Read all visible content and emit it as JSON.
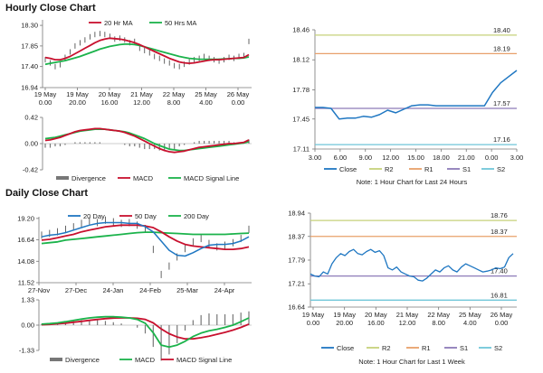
{
  "sections": {
    "hourly_title": "Hourly Close Chart",
    "daily_title": "Daily Close Chart"
  },
  "colors": {
    "green": "#1bb34b",
    "red": "#c8102e",
    "blue": "#1f77c2",
    "price": "#3d3d3d",
    "r2": "#c6d27a",
    "r1": "#e8a06a",
    "s1": "#8d7bb8",
    "s2": "#6fc6d8",
    "divergence": "#777777"
  },
  "chart_data": [
    {
      "id": "hourly_price",
      "type": "line",
      "legend": [
        "20 Hr MA",
        "50 Hrs MA"
      ],
      "y_ticks": [
        "18.30",
        "17.85",
        "17.40",
        "16.94"
      ],
      "y_tick_values": [
        18.3,
        17.85,
        17.4,
        16.94
      ],
      "ylim": [
        16.94,
        18.42
      ],
      "x_ticks": [
        {
          "l1": "19 May",
          "l2": "0.00"
        },
        {
          "l1": "19 May",
          "l2": "20.00"
        },
        {
          "l1": "20 May",
          "l2": "16.00"
        },
        {
          "l1": "21 May",
          "l2": "12.00"
        },
        {
          "l1": "22 May",
          "l2": "8.00"
        },
        {
          "l1": "25 May",
          "l2": "4.00"
        },
        {
          "l1": "26 May",
          "l2": "0.00"
        }
      ],
      "price": [
        17.55,
        17.48,
        17.4,
        17.44,
        17.6,
        17.72,
        17.85,
        17.92,
        17.98,
        18.05,
        18.1,
        18.12,
        18.1,
        18.06,
        18.0,
        18.02,
        17.98,
        17.92,
        17.95,
        17.8,
        17.75,
        17.7,
        17.62,
        17.58,
        17.52,
        17.48,
        17.42,
        17.4,
        17.45,
        17.5,
        17.55,
        17.58,
        17.62,
        17.58,
        17.55,
        17.52,
        17.55,
        17.6,
        17.58,
        17.62,
        17.64,
        17.95
      ],
      "ma20": [
        17.6,
        17.58,
        17.55,
        17.55,
        17.58,
        17.62,
        17.68,
        17.74,
        17.8,
        17.86,
        17.92,
        17.97,
        18.0,
        18.02,
        18.01,
        18.0,
        17.98,
        17.95,
        17.92,
        17.88,
        17.83,
        17.78,
        17.73,
        17.68,
        17.63,
        17.58,
        17.54,
        17.5,
        17.48,
        17.47,
        17.48,
        17.5,
        17.52,
        17.54,
        17.55,
        17.55,
        17.56,
        17.57,
        17.58,
        17.59,
        17.6,
        17.66
      ],
      "ma50": [
        17.45,
        17.47,
        17.49,
        17.51,
        17.53,
        17.56,
        17.59,
        17.62,
        17.66,
        17.7,
        17.74,
        17.78,
        17.81,
        17.84,
        17.86,
        17.88,
        17.89,
        17.89,
        17.88,
        17.86,
        17.83,
        17.8,
        17.77,
        17.74,
        17.71,
        17.68,
        17.65,
        17.62,
        17.6,
        17.58,
        17.57,
        17.56,
        17.56,
        17.56,
        17.56,
        17.56,
        17.57,
        17.57,
        17.58,
        17.58,
        17.59,
        17.61
      ]
    },
    {
      "id": "hourly_macd",
      "type": "line",
      "legend": [
        "Divergence",
        "MACD",
        "MACD Signal Line"
      ],
      "y_ticks": [
        "0.42",
        "0.00",
        "-0.42"
      ],
      "y_tick_values": [
        0.42,
        0.0,
        -0.42
      ],
      "ylim": [
        -0.42,
        0.42
      ],
      "macd": [
        0.05,
        0.06,
        0.08,
        0.1,
        0.13,
        0.16,
        0.19,
        0.21,
        0.22,
        0.23,
        0.24,
        0.24,
        0.23,
        0.22,
        0.21,
        0.2,
        0.18,
        0.15,
        0.12,
        0.08,
        0.04,
        0.0,
        -0.04,
        -0.08,
        -0.11,
        -0.13,
        -0.14,
        -0.13,
        -0.12,
        -0.1,
        -0.08,
        -0.06,
        -0.05,
        -0.04,
        -0.03,
        -0.02,
        -0.01,
        0.0,
        0.0,
        0.01,
        0.02,
        0.06
      ],
      "signal": [
        0.08,
        0.09,
        0.1,
        0.12,
        0.14,
        0.16,
        0.18,
        0.2,
        0.21,
        0.22,
        0.23,
        0.23,
        0.23,
        0.22,
        0.21,
        0.2,
        0.19,
        0.17,
        0.14,
        0.11,
        0.08,
        0.04,
        0.0,
        -0.03,
        -0.06,
        -0.09,
        -0.1,
        -0.11,
        -0.11,
        -0.1,
        -0.09,
        -0.08,
        -0.07,
        -0.06,
        -0.05,
        -0.04,
        -0.03,
        -0.02,
        -0.01,
        0.0,
        0.01,
        0.03
      ]
    },
    {
      "id": "hourly_24h",
      "type": "line",
      "legend": [
        "Close",
        "R2",
        "R1",
        "S1",
        "S2"
      ],
      "y_ticks": [
        "18.46",
        "18.12",
        "17.78",
        "17.45",
        "17.11"
      ],
      "y_tick_values": [
        18.46,
        18.12,
        17.78,
        17.45,
        17.11
      ],
      "ylim": [
        17.11,
        18.46
      ],
      "x_ticks": [
        "3.00",
        "6.00",
        "9.00",
        "12.00",
        "15.00",
        "18.00",
        "21.00",
        "0.00",
        "3.00"
      ],
      "levels": {
        "R2": 18.4,
        "R1": 18.19,
        "S1": 17.57,
        "S2": 17.16
      },
      "level_labels": {
        "R2": "18.40",
        "R1": "18.19",
        "S1": "17.57",
        "S2": "17.16"
      },
      "x": [
        0,
        1,
        2,
        3,
        4,
        5,
        6,
        7,
        8,
        9,
        10,
        11,
        12,
        13,
        14,
        15,
        16,
        17,
        18,
        19,
        20,
        21,
        22,
        23,
        24,
        25
      ],
      "close": [
        17.58,
        17.58,
        17.57,
        17.45,
        17.46,
        17.46,
        17.48,
        17.47,
        17.5,
        17.55,
        17.52,
        17.56,
        17.6,
        17.61,
        17.61,
        17.6,
        17.6,
        17.6,
        17.6,
        17.6,
        17.6,
        17.6,
        17.75,
        17.86,
        17.93,
        18.0
      ],
      "note": "Note: 1 Hour Chart for Last 24 Hours"
    },
    {
      "id": "daily_price",
      "type": "line",
      "legend": [
        "20 Day",
        "50 Day",
        "200 Day"
      ],
      "y_ticks": [
        "19.20",
        "16.64",
        "14.08",
        "11.52"
      ],
      "y_tick_values": [
        19.2,
        16.64,
        14.08,
        11.52
      ],
      "ylim": [
        11.52,
        19.4
      ],
      "x_ticks": [
        "27-Nov",
        "27-Dec",
        "24-Jan",
        "24-Feb",
        "25-Mar",
        "24-Apr"
      ],
      "price": [
        17.2,
        17.4,
        17.6,
        17.9,
        18.2,
        18.6,
        18.9,
        18.7,
        19.0,
        18.8,
        18.6,
        18.7,
        18.4,
        18.0,
        15.5,
        12.5,
        13.5,
        14.6,
        15.6,
        16.4,
        16.8,
        16.2,
        15.8,
        16.0,
        16.3,
        16.8,
        17.9
      ],
      "ma20": [
        17.0,
        17.2,
        17.3,
        17.5,
        17.8,
        18.1,
        18.4,
        18.6,
        18.7,
        18.7,
        18.7,
        18.6,
        18.6,
        18.2,
        17.6,
        16.5,
        15.4,
        14.8,
        14.7,
        15.1,
        15.6,
        16.0,
        16.1,
        16.1,
        16.2,
        16.5,
        17.0
      ],
      "ma50": [
        16.6,
        16.7,
        16.9,
        17.1,
        17.3,
        17.6,
        17.8,
        18.0,
        18.2,
        18.3,
        18.4,
        18.4,
        18.4,
        18.3,
        18.1,
        17.6,
        17.0,
        16.5,
        16.1,
        15.9,
        15.8,
        15.7,
        15.6,
        15.5,
        15.5,
        15.6,
        15.8
      ],
      "ma200": [
        16.2,
        16.3,
        16.4,
        16.6,
        16.7,
        16.8,
        16.9,
        17.0,
        17.1,
        17.2,
        17.3,
        17.4,
        17.5,
        17.55,
        17.55,
        17.5,
        17.45,
        17.4,
        17.35,
        17.3,
        17.3,
        17.3,
        17.3,
        17.3,
        17.35,
        17.4,
        17.45
      ]
    },
    {
      "id": "daily_macd",
      "type": "line",
      "legend": [
        "Divergence",
        "MACD",
        "MACD Signal Line"
      ],
      "y_ticks": [
        "1.33",
        "0.00",
        "-1.33"
      ],
      "y_tick_values": [
        1.33,
        0.0,
        -1.33
      ],
      "ylim": [
        -1.33,
        1.33
      ],
      "macd": [
        0.05,
        0.08,
        0.12,
        0.18,
        0.25,
        0.32,
        0.38,
        0.42,
        0.44,
        0.44,
        0.42,
        0.38,
        0.3,
        0.1,
        -0.4,
        -1.05,
        -1.15,
        -1.05,
        -0.85,
        -0.6,
        -0.42,
        -0.3,
        -0.22,
        -0.12,
        0.0,
        0.18,
        0.38
      ],
      "signal": [
        0.02,
        0.04,
        0.07,
        0.1,
        0.15,
        0.2,
        0.25,
        0.3,
        0.34,
        0.37,
        0.38,
        0.38,
        0.36,
        0.3,
        0.12,
        -0.2,
        -0.45,
        -0.62,
        -0.72,
        -0.72,
        -0.66,
        -0.58,
        -0.48,
        -0.38,
        -0.26,
        -0.12,
        0.05
      ]
    },
    {
      "id": "daily_week",
      "type": "line",
      "legend": [
        "Close",
        "R2",
        "R1",
        "S1",
        "S2"
      ],
      "y_ticks": [
        "18.94",
        "18.37",
        "17.79",
        "17.21",
        "16.64"
      ],
      "y_tick_values": [
        18.94,
        18.37,
        17.79,
        17.21,
        16.64
      ],
      "ylim": [
        16.64,
        18.94
      ],
      "x_ticks": [
        {
          "l1": "19 May",
          "l2": "0.00"
        },
        {
          "l1": "19 May",
          "l2": "20.00"
        },
        {
          "l1": "20 May",
          "l2": "16.00"
        },
        {
          "l1": "21 May",
          "l2": "12.00"
        },
        {
          "l1": "22 May",
          "l2": "8.00"
        },
        {
          "l1": "25 May",
          "l2": "4.00"
        },
        {
          "l1": "26 May",
          "l2": "0.00"
        }
      ],
      "levels": {
        "R2": 18.76,
        "R1": 18.37,
        "S1": 17.4,
        "S2": 16.81
      },
      "level_labels": {
        "R2": "18.76",
        "R1": "18.37",
        "S1": "17.40",
        "S2": "16.81"
      },
      "close": [
        17.45,
        17.4,
        17.38,
        17.5,
        17.45,
        17.7,
        17.85,
        17.95,
        17.9,
        18.0,
        18.05,
        17.95,
        17.92,
        18.0,
        18.05,
        17.98,
        18.02,
        17.9,
        17.6,
        17.55,
        17.62,
        17.5,
        17.45,
        17.4,
        17.38,
        17.3,
        17.28,
        17.35,
        17.45,
        17.55,
        17.5,
        17.6,
        17.65,
        17.55,
        17.5,
        17.62,
        17.7,
        17.65,
        17.6,
        17.55,
        17.5,
        17.52,
        17.55,
        17.6,
        17.58,
        17.62,
        17.85,
        17.95
      ],
      "note": "Note: 1 Hour Chart for Last 1 Week"
    }
  ]
}
